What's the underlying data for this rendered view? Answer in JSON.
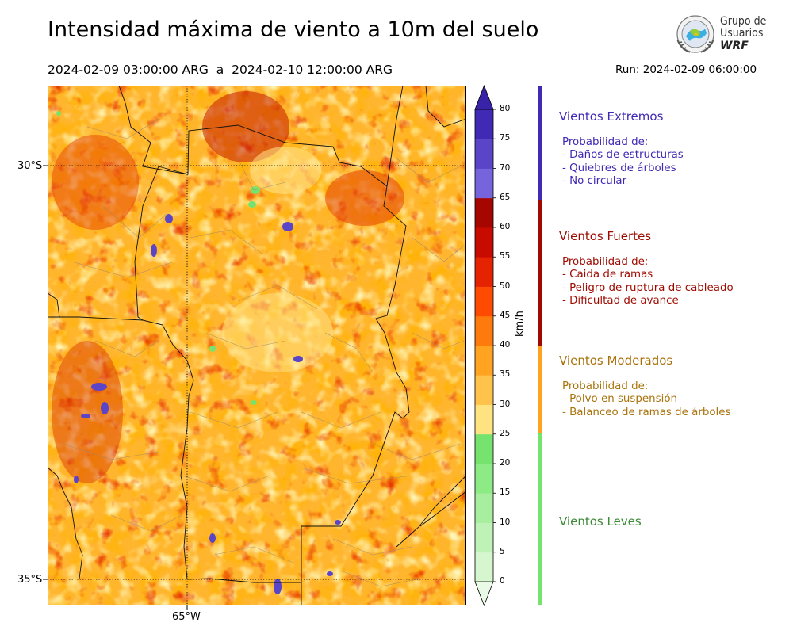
{
  "header": {
    "title": "Intensidad máxima de viento a 10m del suelo",
    "period": "2024-02-09 03:00:00 ARG  a  2024-02-10 12:00:00 ARG",
    "run": "Run: 2024-02-09 06:00:00"
  },
  "logo": {
    "line1": "Grupo de",
    "line2": "Usuarios",
    "line3": "WRF"
  },
  "map": {
    "lat_labels": [
      "30°S",
      "35°S"
    ],
    "lon_labels": [
      "65°W"
    ]
  },
  "colorbar": {
    "unit": "km/h",
    "ticks": [
      "0",
      "5",
      "10",
      "15",
      "20",
      "25",
      "30",
      "35",
      "40",
      "45",
      "50",
      "55",
      "60",
      "65",
      "70",
      "75",
      "80"
    ],
    "colors": [
      "#e9fbe6",
      "#d6f6cf",
      "#bff2b6",
      "#a7ee9e",
      "#8deb86",
      "#77e36f",
      "#ffe380",
      "#ffc24a",
      "#ffa321",
      "#ff7a0c",
      "#ff4b02",
      "#e52300",
      "#c80b00",
      "#a50600",
      "#7564db",
      "#5a45c8",
      "#3f29b5",
      "#3722a8"
    ],
    "extend_top": "#3722a8"
  },
  "categories": [
    {
      "title": "Vientos Extremos",
      "color": "#3f29b5",
      "lines": [
        "Probabilidad de:",
        "- Daños de estructuras",
        "- Quiebres de árboles",
        "- No circular"
      ]
    },
    {
      "title": "Vientos Fuertes",
      "color": "#9e0a00",
      "lines": [
        "Probabilidad de:",
        "- Caida de ramas",
        "- Peligro de ruptura de cableado",
        "- Dificultad de avance"
      ]
    },
    {
      "title": "Vientos Moderados",
      "color": "#a9720b",
      "lines": [
        "Probabilidad de:",
        "- Polvo en suspensión",
        "- Balanceo de ramas de árboles"
      ]
    },
    {
      "title": "Vientos Leves",
      "color": "#3b8a36",
      "lines": []
    }
  ],
  "category_bar_colors": [
    "#3f29b5",
    "#9e0a00",
    "#ffa321",
    "#77e36f"
  ]
}
